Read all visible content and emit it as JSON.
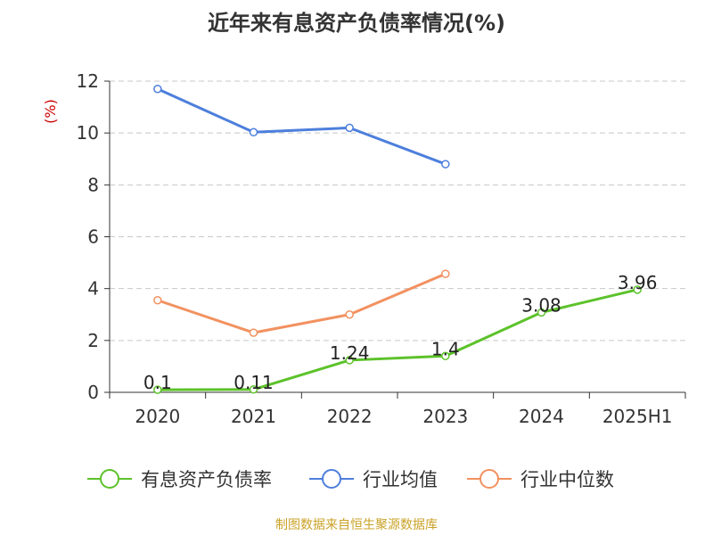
{
  "chart_data": {
    "type": "line",
    "title": "近年来有息资产负债率情况(%)",
    "ylabel": "(%)",
    "xlabel": "",
    "categories": [
      "2020",
      "2021",
      "2022",
      "2023",
      "2024",
      "2025H1"
    ],
    "ylim": [
      0,
      12
    ],
    "yticks": [
      0,
      2,
      4,
      6,
      8,
      10,
      12
    ],
    "grid": true,
    "legend_position": "bottom",
    "series": [
      {
        "name": "有息资产负债率",
        "color": "#5cc22a",
        "values": [
          0.1,
          0.11,
          1.24,
          1.4,
          3.08,
          3.96
        ],
        "data_labels": [
          "0.1",
          "0.11",
          "1.24",
          "1.4",
          "3.08",
          "3.96"
        ]
      },
      {
        "name": "行业均值",
        "color": "#4d7fdc",
        "values": [
          11.7,
          10.03,
          10.2,
          8.8,
          null,
          null
        ]
      },
      {
        "name": "行业中位数",
        "color": "#f29160",
        "values": [
          3.55,
          2.3,
          3.0,
          4.57,
          null,
          null
        ]
      }
    ]
  },
  "source_note": "制图数据来自恒生聚源数据库",
  "colors": {
    "axis": "#333333",
    "grid": "#c8c8c8",
    "ylabel": "#cc0000",
    "source": "#c9a227"
  }
}
